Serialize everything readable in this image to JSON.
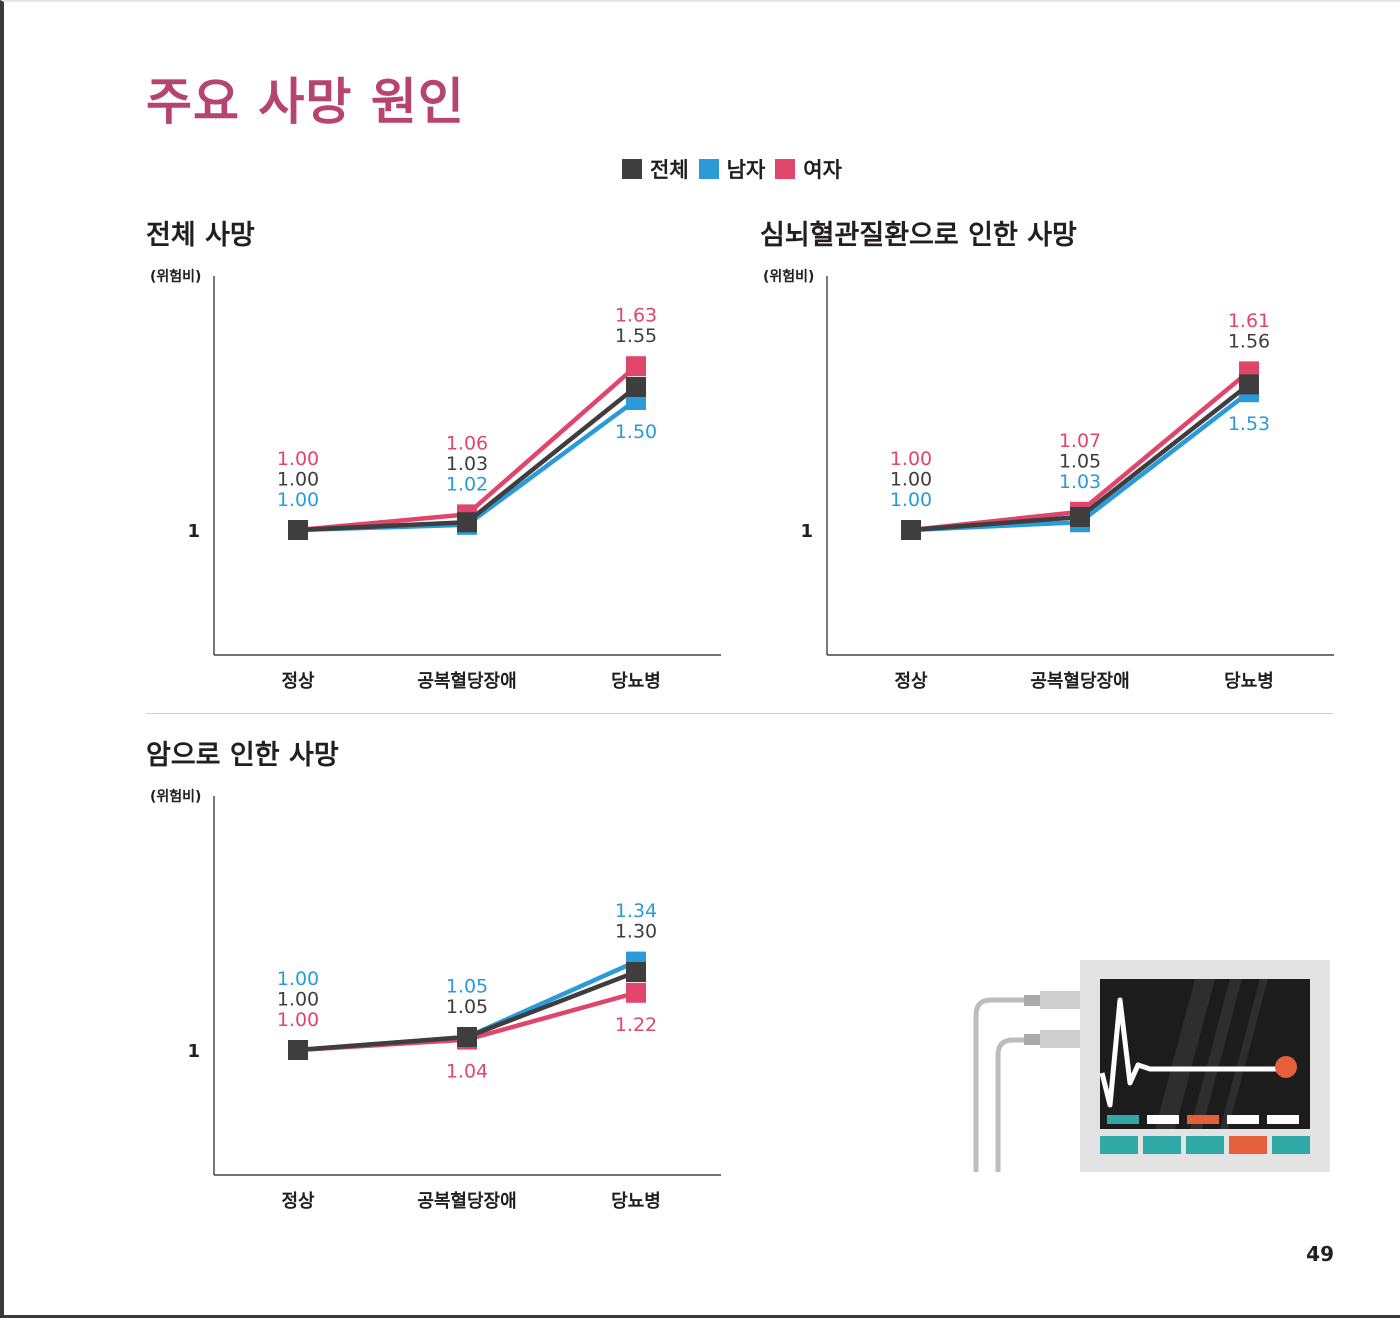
{
  "page": {
    "title": "주요 사망 원인",
    "page_number": "49"
  },
  "legend": [
    {
      "label": "전체",
      "color": "#3e3e3e"
    },
    {
      "label": "남자",
      "color": "#2a9bd8"
    },
    {
      "label": "여자",
      "color": "#e0466c"
    }
  ],
  "colors": {
    "title": "#b5456f",
    "total": "#3e3e3e",
    "male": "#2a9bd8",
    "female": "#e0466c"
  },
  "chart_data": [
    {
      "type": "line",
      "title": "전체 사망",
      "ylabel": "(위험비)",
      "ytick": "1",
      "categories": [
        "정상",
        "공복혈당장애",
        "당뇨병"
      ],
      "series": [
        {
          "name": "전체",
          "values": [
            1.0,
            1.03,
            1.55
          ]
        },
        {
          "name": "남자",
          "values": [
            1.0,
            1.02,
            1.5
          ]
        },
        {
          "name": "여자",
          "values": [
            1.0,
            1.06,
            1.63
          ]
        }
      ]
    },
    {
      "type": "line",
      "title": "심뇌혈관질환으로 인한 사망",
      "ylabel": "(위험비)",
      "ytick": "1",
      "categories": [
        "정상",
        "공복혈당장애",
        "당뇨병"
      ],
      "series": [
        {
          "name": "전체",
          "values": [
            1.0,
            1.05,
            1.56
          ]
        },
        {
          "name": "남자",
          "values": [
            1.0,
            1.03,
            1.53
          ]
        },
        {
          "name": "여자",
          "values": [
            1.0,
            1.07,
            1.61
          ]
        }
      ]
    },
    {
      "type": "line",
      "title": "암으로 인한 사망",
      "ylabel": "(위험비)",
      "ytick": "1",
      "categories": [
        "정상",
        "공복혈당장애",
        "당뇨병"
      ],
      "series": [
        {
          "name": "전체",
          "values": [
            1.0,
            1.05,
            1.3
          ]
        },
        {
          "name": "남자",
          "values": [
            1.0,
            1.05,
            1.34
          ]
        },
        {
          "name": "여자",
          "values": [
            1.0,
            1.04,
            1.22
          ]
        }
      ]
    }
  ]
}
